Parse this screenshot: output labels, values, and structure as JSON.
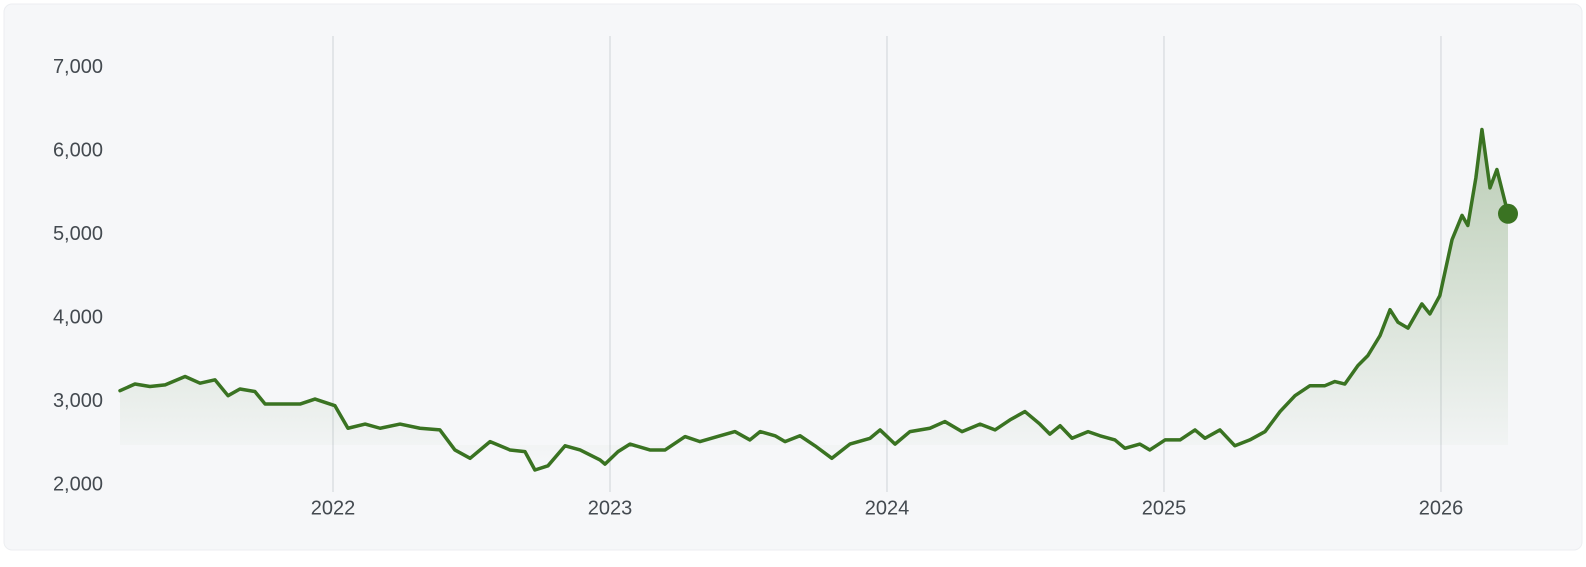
{
  "chart_data": {
    "type": "line",
    "color": "#3a7322",
    "x": [
      2021.231,
      2021.285,
      2021.339,
      2021.394,
      2021.466,
      2021.52,
      2021.574,
      2021.621,
      2021.664,
      2021.718,
      2021.755,
      2021.809,
      2021.881,
      2021.935,
      2022.007,
      2022.054,
      2022.116,
      2022.17,
      2022.242,
      2022.314,
      2022.386,
      2022.44,
      2022.495,
      2022.567,
      2022.639,
      2022.693,
      2022.729,
      2022.776,
      2022.838,
      2022.892,
      2022.964,
      2022.982,
      2023.029,
      2023.072,
      2023.144,
      2023.199,
      2023.271,
      2023.325,
      2023.397,
      2023.451,
      2023.505,
      2023.542,
      2023.596,
      2023.632,
      2023.686,
      2023.74,
      2023.801,
      2023.866,
      2023.939,
      2023.975,
      2024.029,
      2024.083,
      2024.155,
      2024.209,
      2024.271,
      2024.336,
      2024.39,
      2024.444,
      2024.498,
      2024.552,
      2024.588,
      2024.625,
      2024.668,
      2024.726,
      2024.769,
      2024.823,
      2024.859,
      2024.913,
      2024.949,
      2025.004,
      2025.058,
      2025.112,
      2025.148,
      2025.202,
      2025.256,
      2025.31,
      2025.365,
      2025.419,
      2025.473,
      2025.527,
      2025.581,
      2025.617,
      2025.653,
      2025.7,
      2025.736,
      2025.78,
      2025.816,
      2025.845,
      2025.881,
      2025.931,
      2025.96,
      2025.996,
      2026.04,
      2026.076,
      2026.097,
      2026.126,
      2026.148,
      2026.177,
      2026.202,
      2026.242
    ],
    "values": [
      3130,
      3210,
      3180,
      3200,
      3300,
      3220,
      3260,
      3070,
      3150,
      3120,
      2970,
      2970,
      2970,
      3030,
      2950,
      2680,
      2730,
      2680,
      2730,
      2680,
      2660,
      2420,
      2320,
      2520,
      2420,
      2400,
      2180,
      2230,
      2470,
      2420,
      2300,
      2250,
      2400,
      2490,
      2420,
      2420,
      2580,
      2520,
      2590,
      2640,
      2540,
      2640,
      2590,
      2520,
      2590,
      2470,
      2320,
      2490,
      2560,
      2660,
      2490,
      2640,
      2680,
      2760,
      2640,
      2730,
      2660,
      2780,
      2880,
      2730,
      2610,
      2710,
      2560,
      2640,
      2590,
      2540,
      2440,
      2490,
      2420,
      2540,
      2540,
      2660,
      2560,
      2660,
      2470,
      2540,
      2640,
      2880,
      3070,
      3190,
      3190,
      3240,
      3210,
      3430,
      3550,
      3790,
      4100,
      3950,
      3880,
      4170,
      4050,
      4270,
      4940,
      5230,
      5110,
      5680,
      6260,
      5560,
      5780,
      5250
    ],
    "xlim": [
      2021.231,
      2026.242
    ],
    "xticks": [
      2022,
      2023,
      2024,
      2025,
      2026
    ],
    "ylim": [
      2000,
      7380
    ],
    "yticks": [
      {
        "value": 2000,
        "label": "2,000"
      },
      {
        "value": 3000,
        "label": "3,000"
      },
      {
        "value": 4000,
        "label": "4,000"
      },
      {
        "value": 5000,
        "label": "5,000"
      },
      {
        "value": 6000,
        "label": "6,000"
      },
      {
        "value": 7000,
        "label": "7,000"
      }
    ],
    "grid": "x"
  }
}
